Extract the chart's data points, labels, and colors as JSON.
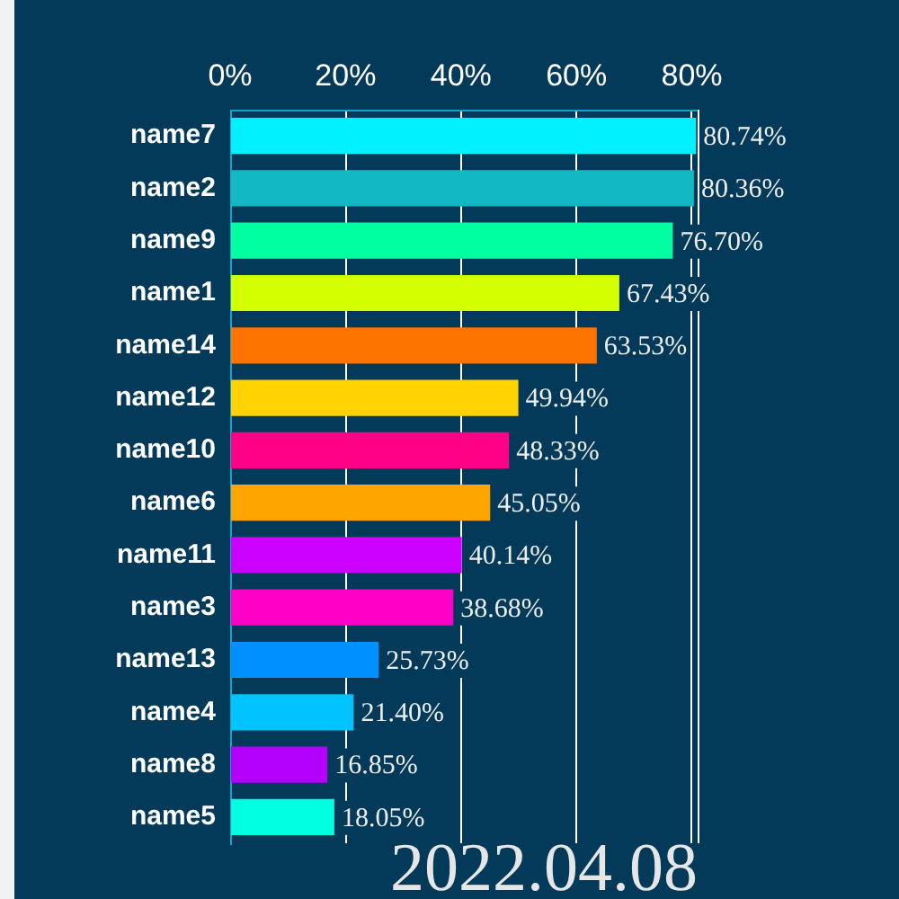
{
  "chart_data": {
    "type": "bar",
    "orientation": "horizontal",
    "categories": [
      "name7",
      "name2",
      "name9",
      "name1",
      "name14",
      "name12",
      "name10",
      "name6",
      "name11",
      "name3",
      "name13",
      "name4",
      "name8",
      "name5"
    ],
    "values": [
      80.74,
      80.36,
      76.7,
      67.43,
      63.53,
      49.94,
      48.33,
      45.05,
      40.14,
      38.68,
      25.73,
      21.4,
      16.85,
      18.05
    ],
    "colors": [
      "#00f0ff",
      "#12b8c4",
      "#00ffa0",
      "#d4ff00",
      "#ff7300",
      "#ffd200",
      "#ff0087",
      "#ffa500",
      "#cc00ff",
      "#ff00c8",
      "#0090ff",
      "#00c3ff",
      "#b400ff",
      "#00ffe0"
    ],
    "value_labels": [
      "80.74%",
      "80.36%",
      "76.70%",
      "67.43%",
      "63.53%",
      "49.94%",
      "48.33%",
      "45.05%",
      "40.14%",
      "38.68%",
      "25.73%",
      "21.40%",
      "16.85%",
      "18.05%"
    ],
    "xlim": [
      0,
      81
    ],
    "xticks": [
      {
        "value": 0,
        "label": "0%"
      },
      {
        "value": 20,
        "label": "20%"
      },
      {
        "value": 40,
        "label": "40%"
      },
      {
        "value": 60,
        "label": "60%"
      },
      {
        "value": 80,
        "label": "80%"
      }
    ],
    "grid": "x",
    "legend": false,
    "annotations": [
      "2022.04.08"
    ]
  }
}
